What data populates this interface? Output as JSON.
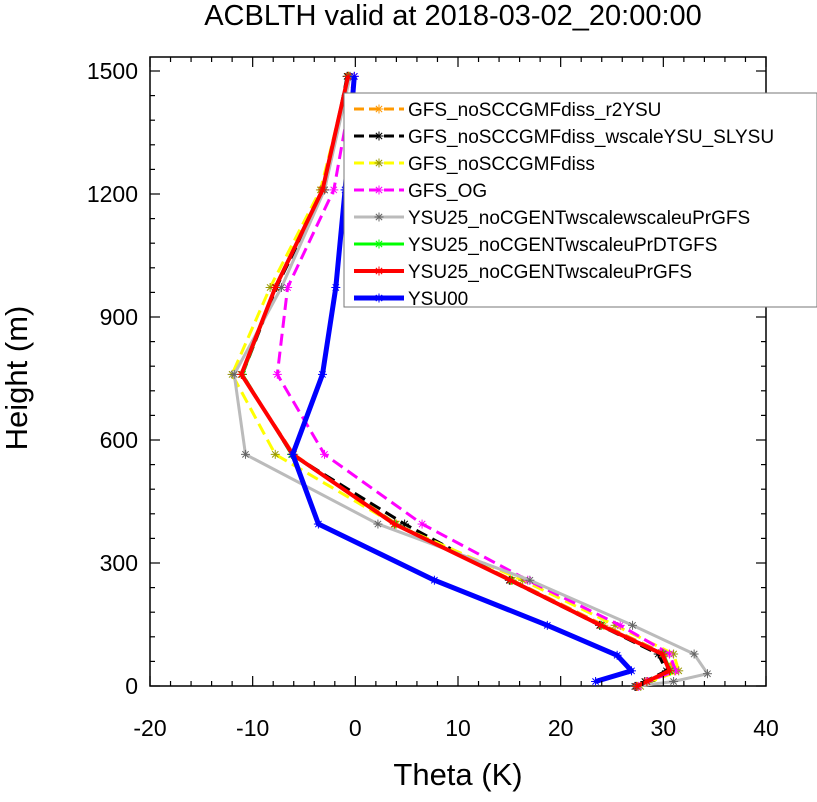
{
  "chart_data": {
    "type": "line",
    "title": "ACBLTH valid at 2018-03-02_20:00:00",
    "xlabel": "Theta (K)",
    "ylabel": "Height (m)",
    "xlim": [
      -20,
      40
    ],
    "ylim": [
      0,
      1500
    ],
    "xticks": [
      "-20",
      "-10",
      "0",
      "10",
      "20",
      "30",
      "40"
    ],
    "yticks": [
      "0",
      "300",
      "600",
      "900",
      "1200",
      "1500"
    ],
    "grid": false,
    "legend_position": "top-right",
    "series": [
      {
        "name": "GFS_noSCCGMFdiss_r2YSU",
        "color": "#ff9900",
        "dash": "dashed",
        "width": 3,
        "points": [
          [
            -0.7,
            1487
          ],
          [
            -3.3,
            1210
          ],
          [
            -7.8,
            972
          ],
          [
            -11.1,
            760
          ],
          [
            -6.0,
            565
          ],
          [
            4.0,
            395
          ],
          [
            15.3,
            258
          ],
          [
            24.2,
            148
          ],
          [
            30.2,
            78
          ],
          [
            31.1,
            37
          ],
          [
            28.5,
            11
          ],
          [
            27.5,
            -1
          ]
        ]
      },
      {
        "name": "GFS_noSCCGMFdiss_wscaleYSU_SLYSU",
        "color": "#000000",
        "dash": "dashed",
        "width": 3,
        "points": [
          [
            -0.8,
            1487
          ],
          [
            -3.0,
            1210
          ],
          [
            -7.7,
            972
          ],
          [
            -11.0,
            760
          ],
          [
            -6.2,
            565
          ],
          [
            4.8,
            395
          ],
          [
            15.0,
            258
          ],
          [
            23.8,
            148
          ],
          [
            29.5,
            78
          ],
          [
            30.3,
            37
          ],
          [
            28.2,
            11
          ],
          [
            27.3,
            -1
          ]
        ]
      },
      {
        "name": "GFS_noSCCGMFdiss",
        "color": "#ffff00",
        "dash": "dashed",
        "width": 3,
        "points": [
          [
            -0.6,
            1487
          ],
          [
            -3.4,
            1210
          ],
          [
            -8.3,
            972
          ],
          [
            -12.0,
            760
          ],
          [
            -7.8,
            565
          ],
          [
            3.8,
            395
          ],
          [
            16.3,
            258
          ],
          [
            25.3,
            148
          ],
          [
            31.0,
            78
          ],
          [
            31.5,
            37
          ],
          [
            28.8,
            11
          ],
          [
            27.8,
            -1
          ]
        ]
      },
      {
        "name": "GFS_OG",
        "color": "#ff00ff",
        "dash": "dashed",
        "width": 3,
        "points": [
          [
            -0.1,
            1487
          ],
          [
            -2.1,
            1210
          ],
          [
            -6.6,
            972
          ],
          [
            -7.6,
            760
          ],
          [
            -3.0,
            565
          ],
          [
            6.5,
            395
          ],
          [
            16.8,
            258
          ],
          [
            25.8,
            148
          ],
          [
            30.6,
            78
          ],
          [
            31.2,
            37
          ],
          [
            28.5,
            11
          ],
          [
            27.6,
            -1
          ]
        ]
      },
      {
        "name": "YSU25_noCGENTwscalewscaleuPrGFS",
        "color": "#bbbbbb",
        "dash": "solid",
        "width": 3,
        "points": [
          [
            -0.5,
            1487
          ],
          [
            -3.0,
            1210
          ],
          [
            -7.2,
            972
          ],
          [
            -11.8,
            760
          ],
          [
            -10.7,
            565
          ],
          [
            2.2,
            395
          ],
          [
            17.0,
            258
          ],
          [
            27.0,
            148
          ],
          [
            33.0,
            78
          ],
          [
            34.3,
            30
          ],
          [
            31.0,
            11
          ],
          [
            27.2,
            -1
          ]
        ]
      },
      {
        "name": "YSU25_noCGENTwscaleuPrDTGFS",
        "color": "#00ff00",
        "dash": "solid",
        "width": 3,
        "points": [
          [
            -0.7,
            1487
          ],
          [
            -3.2,
            1210
          ],
          [
            -7.8,
            972
          ],
          [
            -11.0,
            760
          ],
          [
            -6.2,
            565
          ],
          [
            3.9,
            395
          ],
          [
            15.2,
            258
          ],
          [
            24.0,
            148
          ],
          [
            30.0,
            78
          ],
          [
            30.7,
            37
          ],
          [
            28.4,
            11
          ],
          [
            27.4,
            -1
          ]
        ]
      },
      {
        "name": "YSU25_noCGENTwscaleuPrGFS",
        "color": "#ff0000",
        "dash": "solid",
        "width": 4,
        "points": [
          [
            -0.7,
            1487
          ],
          [
            -3.2,
            1210
          ],
          [
            -7.8,
            972
          ],
          [
            -11.1,
            760
          ],
          [
            -6.1,
            565
          ],
          [
            3.8,
            395
          ],
          [
            15.1,
            258
          ],
          [
            23.9,
            148
          ],
          [
            29.9,
            78
          ],
          [
            30.6,
            37
          ],
          [
            28.4,
            11
          ],
          [
            27.4,
            -1
          ]
        ]
      },
      {
        "name": "YSU00",
        "color": "#0000ff",
        "dash": "solid",
        "width": 5,
        "points": [
          [
            -0.1,
            1487
          ],
          [
            -1.0,
            1210
          ],
          [
            -1.9,
            972
          ],
          [
            -3.2,
            760
          ],
          [
            -6.1,
            565
          ],
          [
            -3.6,
            395
          ],
          [
            7.7,
            258
          ],
          [
            18.7,
            148
          ],
          [
            25.5,
            75
          ],
          [
            26.9,
            37
          ],
          [
            23.4,
            11
          ]
        ]
      }
    ]
  }
}
